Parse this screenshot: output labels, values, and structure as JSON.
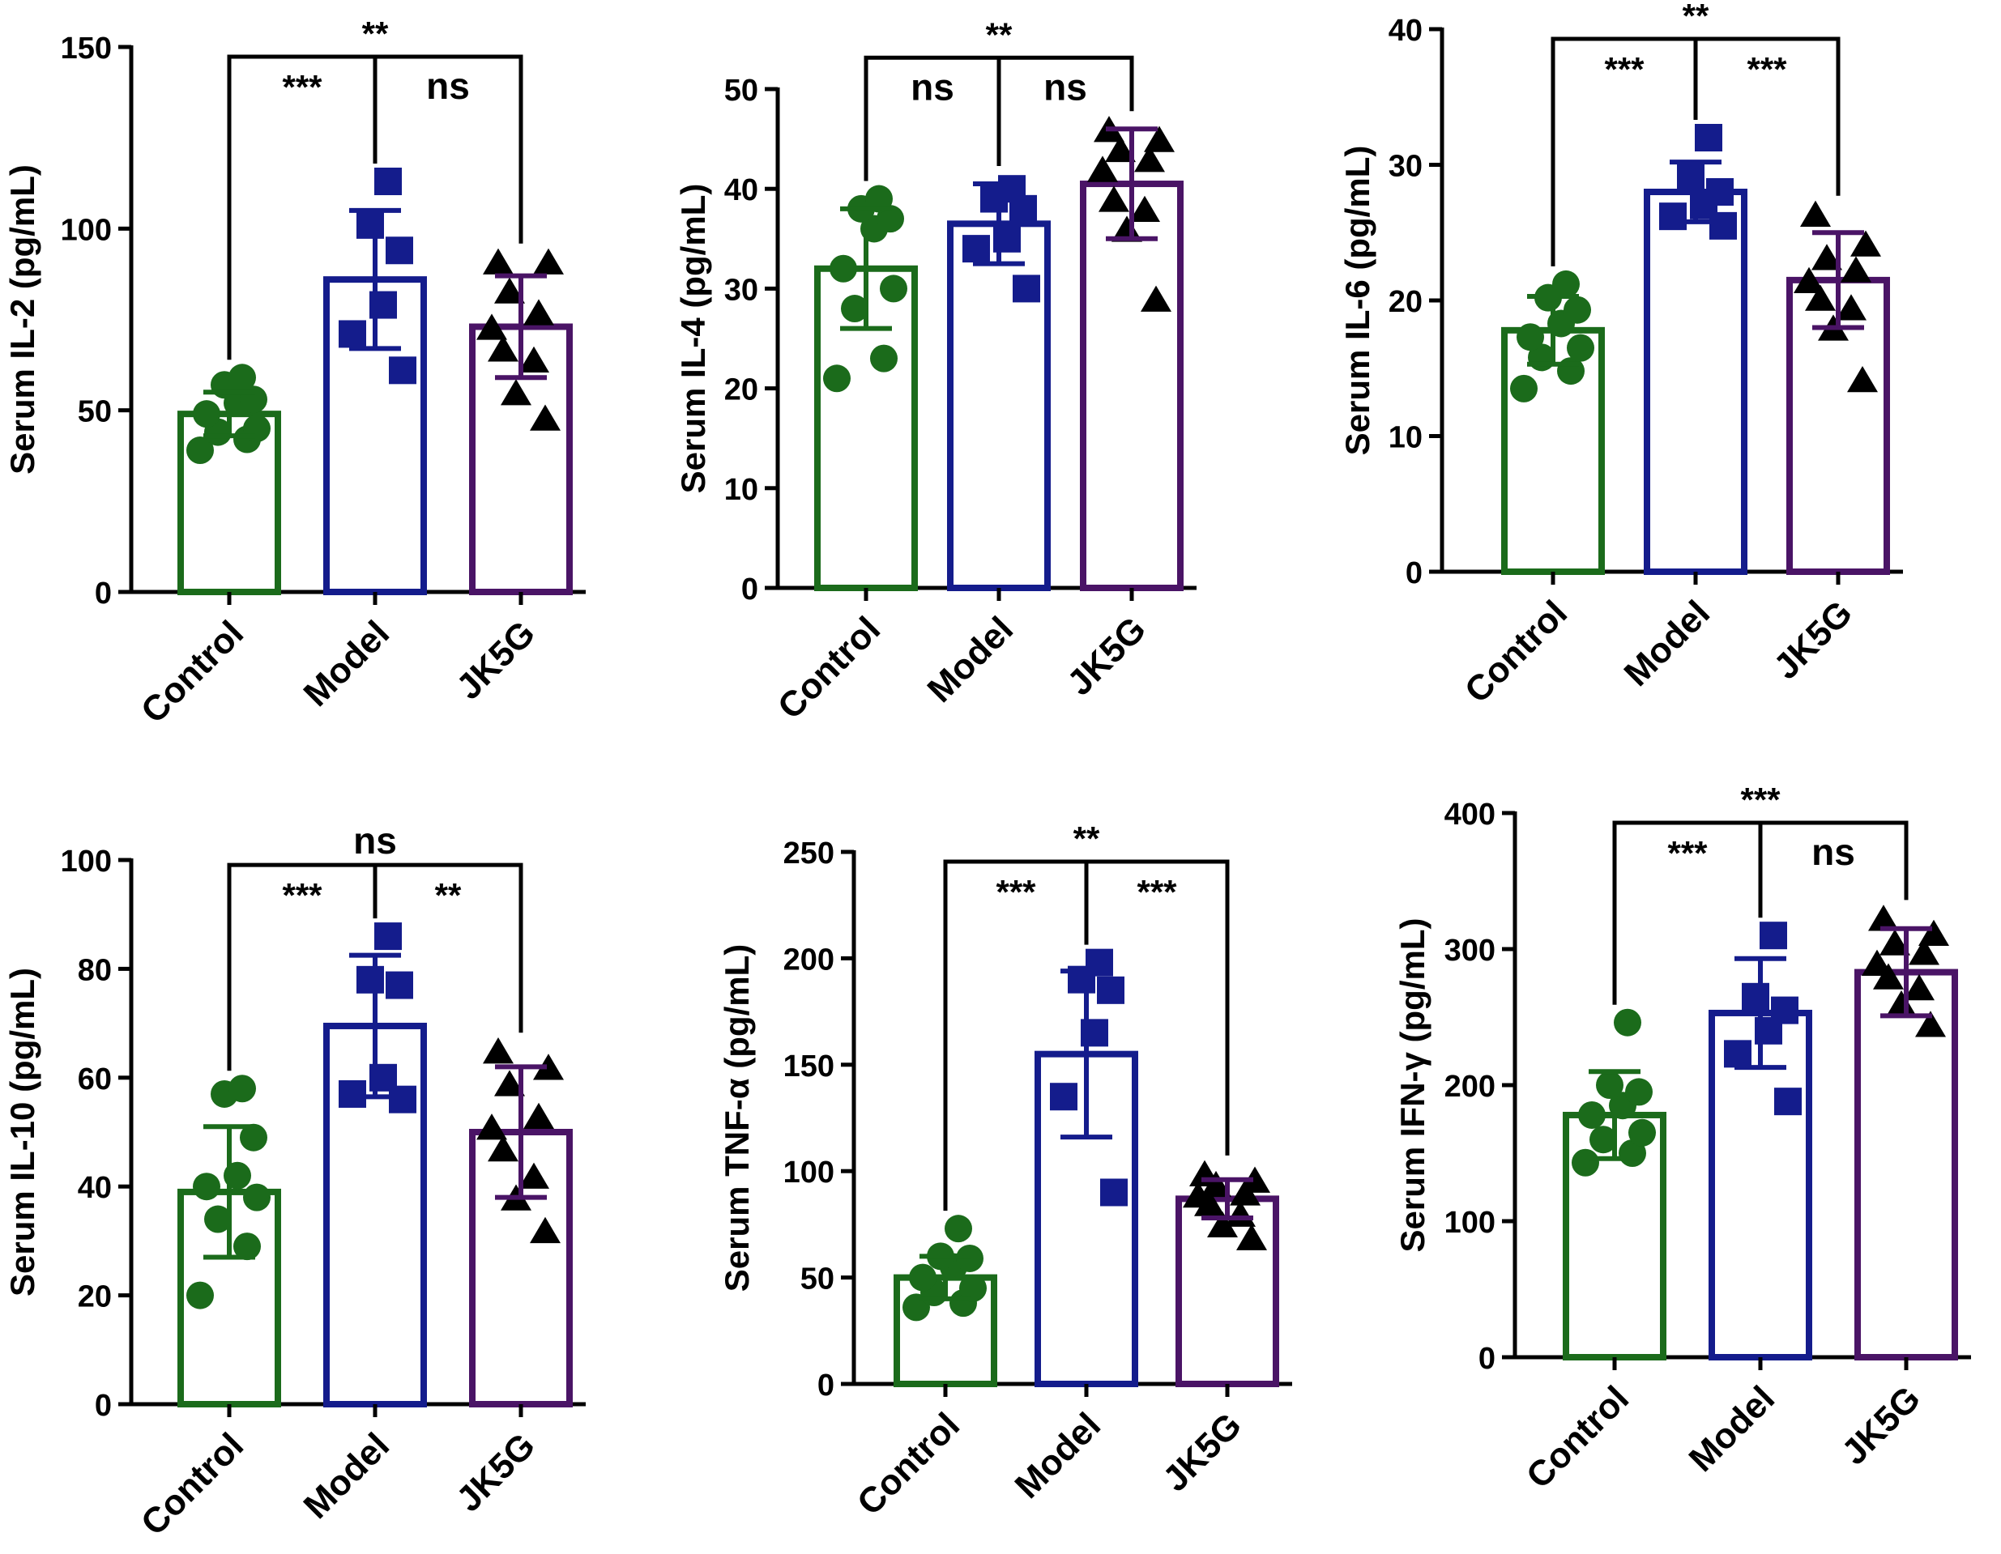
{
  "figure": {
    "colors": {
      "Control": "#1b6b1b",
      "Model": "#141c8c",
      "JK5G": "#4a1466",
      "axis": "#000000"
    },
    "markers": {
      "Control": "circle",
      "Model": "square",
      "JK5G": "triangle"
    }
  },
  "chart_data": [
    {
      "type": "bar",
      "ylabel": "Serum IL-2 (pg/mL)",
      "ylim": [
        0,
        150
      ],
      "yticks": [
        0,
        50,
        100,
        150
      ],
      "categories": [
        "Control",
        "Model",
        "JK5G"
      ],
      "values": [
        49,
        86,
        73
      ],
      "sd": [
        6,
        19,
        14
      ],
      "points": [
        [
          39,
          42,
          44,
          45,
          49,
          52,
          53,
          57,
          59
        ],
        [
          61,
          71,
          79,
          94,
          101,
          113
        ],
        [
          48,
          55,
          64,
          67,
          73,
          77,
          83,
          91,
          91
        ]
      ],
      "comparisons": [
        {
          "label": "***",
          "from": 0,
          "to": 1,
          "level": 1
        },
        {
          "label": "ns",
          "from": 1,
          "to": 2,
          "level": 1
        },
        {
          "label": "**",
          "from": 0,
          "to": 2,
          "level": 2
        }
      ]
    },
    {
      "type": "bar",
      "ylabel": "Serum IL-4 (pg/mL)",
      "ylim": [
        0,
        50
      ],
      "yticks": [
        0,
        10,
        20,
        30,
        40,
        50
      ],
      "categories": [
        "Control",
        "Model",
        "JK5G"
      ],
      "values": [
        32,
        36.5,
        40.5
      ],
      "sd": [
        6,
        4,
        5.5
      ],
      "points": [
        [
          21,
          23,
          28,
          30,
          32,
          36,
          37,
          38,
          39
        ],
        [
          30,
          34,
          35,
          38,
          39,
          40
        ],
        [
          29,
          36,
          38,
          39,
          42,
          43,
          44,
          45,
          46
        ]
      ],
      "comparisons": [
        {
          "label": "ns",
          "from": 0,
          "to": 1,
          "level": 1
        },
        {
          "label": "ns",
          "from": 1,
          "to": 2,
          "level": 1
        },
        {
          "label": "**",
          "from": 0,
          "to": 2,
          "level": 2
        }
      ]
    },
    {
      "type": "bar",
      "ylabel": "Serum IL-6 (pg/mL)",
      "ylim": [
        0,
        40
      ],
      "yticks": [
        0,
        10,
        20,
        30,
        40
      ],
      "categories": [
        "Control",
        "Model",
        "JK5G"
      ],
      "values": [
        17.8,
        28,
        21.5
      ],
      "sd": [
        2.5,
        2.2,
        3.5
      ],
      "points": [
        [
          13.5,
          14.8,
          15.8,
          16.5,
          17.3,
          18.3,
          19.3,
          20.2,
          21.2
        ],
        [
          25.5,
          26.2,
          27,
          28,
          29.2,
          32
        ],
        [
          14.2,
          18,
          19.5,
          20.2,
          21.5,
          22.3,
          23.2,
          24.2,
          26.4
        ]
      ],
      "comparisons": [
        {
          "label": "***",
          "from": 0,
          "to": 1,
          "level": 1
        },
        {
          "label": "***",
          "from": 1,
          "to": 2,
          "level": 1
        },
        {
          "label": "**",
          "from": 0,
          "to": 2,
          "level": 2
        }
      ]
    },
    {
      "type": "bar",
      "ylabel": "Serum IL-10 (pg/mL)",
      "ylim": [
        0,
        100
      ],
      "yticks": [
        0,
        20,
        40,
        60,
        80,
        100
      ],
      "categories": [
        "Control",
        "Model",
        "JK5G"
      ],
      "values": [
        39,
        69.5,
        50
      ],
      "sd": [
        12,
        13,
        12
      ],
      "points": [
        [
          20,
          29,
          34,
          38,
          40,
          42,
          49,
          57,
          58
        ],
        [
          56,
          57,
          60,
          77,
          78,
          86
        ],
        [
          32,
          38,
          42,
          47,
          51,
          53,
          59,
          62,
          65
        ]
      ],
      "comparisons": [
        {
          "label": "***",
          "from": 0,
          "to": 1,
          "level": 1
        },
        {
          "label": "**",
          "from": 1,
          "to": 2,
          "level": 1
        },
        {
          "label": "ns",
          "from": 0,
          "to": 2,
          "level": 2
        }
      ]
    },
    {
      "type": "bar",
      "ylabel": "Serum TNF-α (pg/mL)",
      "ylim": [
        0,
        250
      ],
      "yticks": [
        0,
        50,
        100,
        150,
        200,
        250
      ],
      "categories": [
        "Control",
        "Model",
        "JK5G"
      ],
      "values": [
        50,
        155,
        87
      ],
      "sd": [
        10,
        39,
        9
      ],
      "points": [
        [
          36,
          38,
          43,
          45,
          50,
          55,
          59,
          60,
          73
        ],
        [
          90,
          135,
          165,
          185,
          190,
          198
        ],
        [
          69,
          75,
          80,
          85,
          89,
          90,
          94,
          96,
          99
        ]
      ],
      "comparisons": [
        {
          "label": "***",
          "from": 0,
          "to": 1,
          "level": 1
        },
        {
          "label": "***",
          "from": 1,
          "to": 2,
          "level": 1
        },
        {
          "label": "**",
          "from": 0,
          "to": 2,
          "level": 2
        }
      ]
    },
    {
      "type": "bar",
      "ylabel": "Serum IFN-γ (pg/mL)",
      "ylim": [
        0,
        400
      ],
      "yticks": [
        0,
        100,
        200,
        300,
        400
      ],
      "categories": [
        "Control",
        "Model",
        "JK5G"
      ],
      "values": [
        178,
        253,
        283
      ],
      "sd": [
        32,
        40,
        32
      ],
      "points": [
        [
          143,
          150,
          160,
          165,
          178,
          185,
          195,
          200,
          246
        ],
        [
          188,
          223,
          240,
          255,
          265,
          310
        ],
        [
          245,
          260,
          272,
          280,
          290,
          298,
          305,
          312,
          323
        ]
      ],
      "comparisons": [
        {
          "label": "***",
          "from": 0,
          "to": 1,
          "level": 1
        },
        {
          "label": "ns",
          "from": 1,
          "to": 2,
          "level": 1
        },
        {
          "label": "***",
          "from": 0,
          "to": 2,
          "level": 2
        }
      ]
    }
  ]
}
